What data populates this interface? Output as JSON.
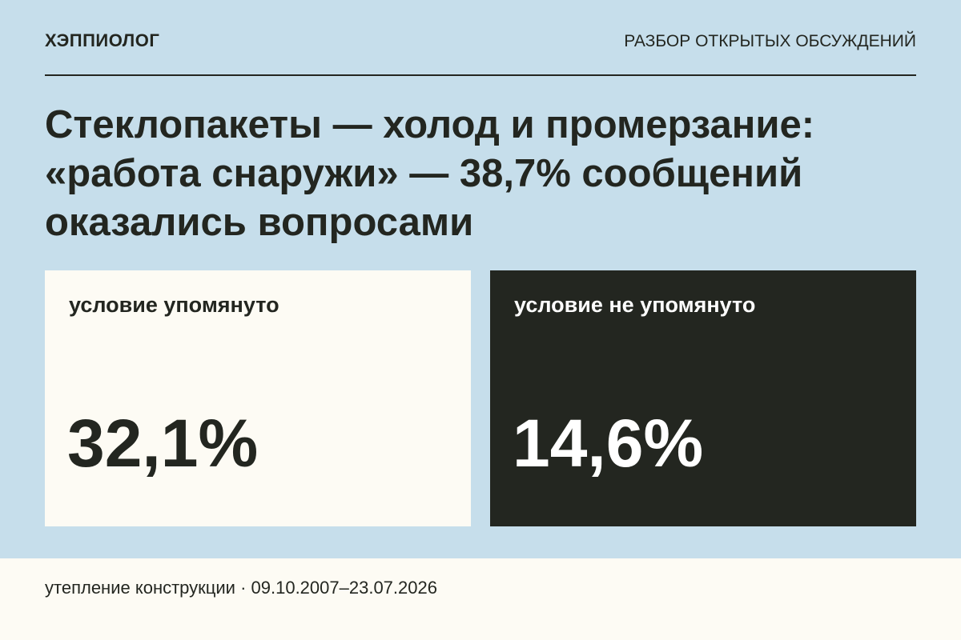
{
  "header": {
    "brand": "ХЭППИОЛОГ",
    "section": "РАЗБОР ОТКРЫТЫХ ОБСУЖДЕНИЙ"
  },
  "title": {
    "lines": [
      "Стеклопакеты — холод и промерзание:",
      "«работа снаружи» — 38,7% сообщений",
      "оказались вопросами"
    ]
  },
  "cards": [
    {
      "label": "условие упомянуто",
      "value": "32,1%"
    },
    {
      "label": "условие не упомянуто",
      "value": "14,6%"
    }
  ],
  "footer": {
    "text": "утепление конструкции · 09.10.2007–23.07.2026"
  }
}
